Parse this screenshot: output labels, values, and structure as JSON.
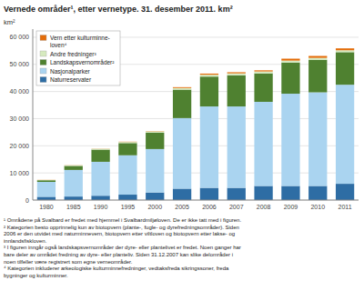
{
  "chart_data": {
    "type": "bar",
    "stacked": true,
    "title": "Vernede områder¹, etter vernetype. 31. desember 2011. km²",
    "ylabel": "km²",
    "categories": [
      "1980",
      "1985",
      "1990",
      "1995",
      "2000",
      "2005",
      "2006",
      "2007",
      "2008",
      "2009",
      "2010",
      "2011"
    ],
    "series": [
      {
        "name": "Naturreservater",
        "color": "#2e6da4",
        "values": [
          1200,
          1300,
          1600,
          2000,
          2800,
          4200,
          4500,
          4500,
          5200,
          5200,
          5200,
          6000
        ]
      },
      {
        "name": "Nasjonalparker",
        "color": "#aad4f0",
        "values": [
          5500,
          9800,
          12500,
          14500,
          16000,
          26000,
          30000,
          30000,
          31000,
          34000,
          34500,
          36500
        ]
      },
      {
        "name": "Landskapsvernområder²",
        "color": "#4f8130",
        "values": [
          600,
          1500,
          4500,
          4500,
          6000,
          10500,
          11000,
          11500,
          10500,
          11500,
          12000,
          12000
        ]
      },
      {
        "name": "Andre fredninger³",
        "color": "#d6eabf",
        "values": [
          100,
          200,
          300,
          400,
          500,
          600,
          700,
          700,
          700,
          700,
          700,
          700
        ]
      },
      {
        "name": "Vern etter kulturminne-\nloven⁴",
        "color": "#e36c09",
        "values": [
          50,
          50,
          50,
          100,
          100,
          300,
          400,
          400,
          400,
          700,
          700,
          700
        ]
      }
    ],
    "ylim": [
      0,
      63000
    ],
    "yticks": [
      0,
      {
        "value": 10000,
        "label": "10 000"
      },
      {
        "value": 20000,
        "label": "20 000"
      },
      {
        "value": 30000,
        "label": "30 000"
      },
      {
        "value": 40000,
        "label": "40 000"
      },
      {
        "value": 50000,
        "label": "50 000"
      },
      {
        "value": 60000,
        "label": "60 000"
      }
    ],
    "grid": true,
    "legend": "upper left",
    "annotations": [
      "¹ Områdene på Svalbard er fredet med hjemmel i Svalbardmiljøloven. De er ikke tatt med i figuren.",
      "² Kategorien besto opprinnelig kun av biotopvern (plante-, fugle- og dyrefredningsområder). Siden",
      "2006 er den utvidet med naturminnevern, biotopvern etter viltloven og biotopvern etter lakse- og",
      "innlandsfiskloven.",
      "³ I figuren inngår også landskapsvernområder der dyre- eller plantelivet er fredet. Noen ganger har",
      "bare deler av området fredning av dyre- eller planteliv. Siden 31.12.2007 kan slike delområder i",
      "noen tilfeller være registrert som egne verneområder.",
      "⁴ Kategorien inkluderer arkeologiske kulturminnefredninger, vedtaksfreda sikringssoner, freda",
      "bygninger og kulturminner."
    ]
  }
}
